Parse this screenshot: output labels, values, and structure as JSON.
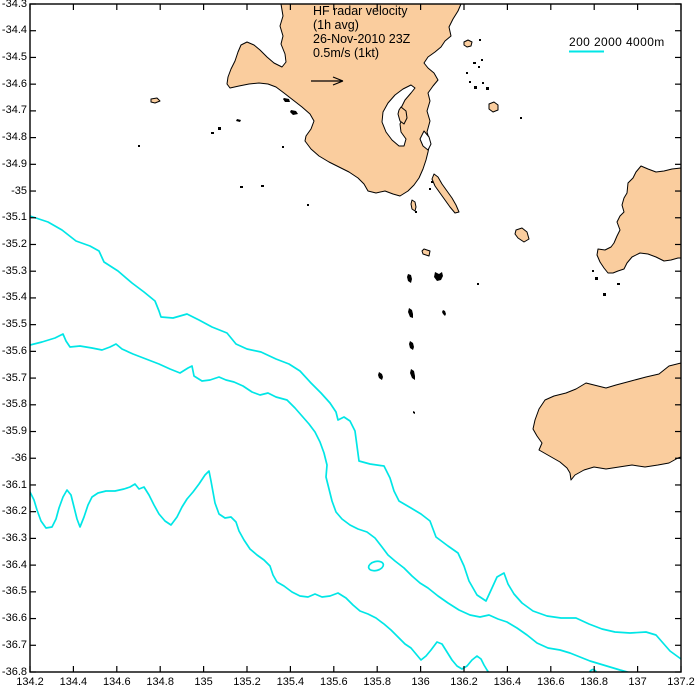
{
  "figure": {
    "annotation": {
      "line1": "HF radar velocity",
      "line2": "(1h avg)",
      "line3": "26-Nov-2010 23Z",
      "line4": "0.5m/s (1kt)"
    },
    "legend": {
      "label": "200  2000  4000m",
      "depths_m": [
        200,
        2000,
        4000
      ],
      "line_color": "#00E6E6"
    },
    "axes": {
      "x": {
        "min": 134.2,
        "max": 137.2,
        "step": 0.2,
        "ticks": [
          "134.2",
          "134.4",
          "134.6",
          "134.8",
          "135",
          "135.2",
          "135.4",
          "135.6",
          "135.8",
          "136",
          "136.2",
          "136.4",
          "136.6",
          "136.8",
          "137",
          "137.2"
        ]
      },
      "y": {
        "min": -36.8,
        "max": -34.3,
        "step": 0.1,
        "ticks": [
          "-34.3",
          "-34.4",
          "-34.5",
          "-34.6",
          "-34.7",
          "-34.8",
          "-34.9",
          "-35",
          "-35.1",
          "-35.2",
          "-35.3",
          "-35.4",
          "-35.5",
          "-35.6",
          "-35.7",
          "-35.8",
          "-35.9",
          "-36",
          "-36.1",
          "-36.2",
          "-36.3",
          "-36.4",
          "-36.5",
          "-36.6",
          "-36.7",
          "-36.8"
        ]
      }
    },
    "colors": {
      "land": "#FACD9E",
      "coastline": "#000000",
      "contour": "#00E6E6",
      "frame": "#000000",
      "background": "#FFFFFF"
    },
    "scale_arrow": {
      "value": "0.5m/s (1kt)"
    }
  }
}
